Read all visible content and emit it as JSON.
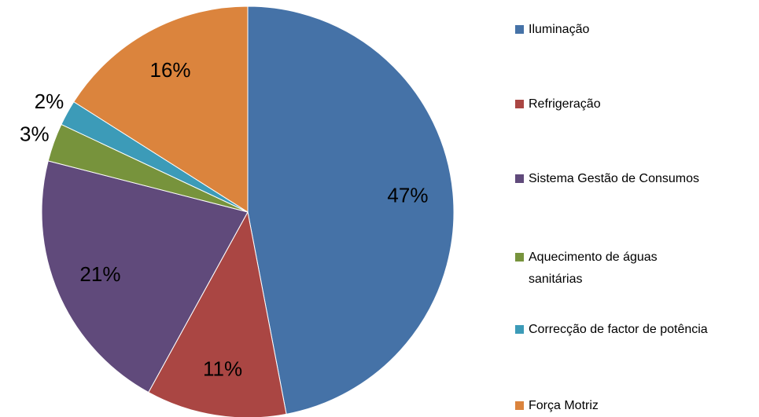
{
  "chart_data": {
    "type": "pie",
    "categories": [
      "Iluminação",
      "Refrigeração",
      "Sistema Gestão de Consumos",
      "Aquecimento de águas sanitárias",
      "Correcção de factor de potência",
      "Força Motriz"
    ],
    "values": [
      47,
      11,
      21,
      3,
      2,
      16
    ],
    "value_labels": [
      "47%",
      "11%",
      "21%",
      "3%",
      "2%",
      "16%"
    ],
    "colors": [
      "#4572a7",
      "#aa4643",
      "#604a7b",
      "#77933c",
      "#3c9bb8",
      "#db843d"
    ]
  }
}
